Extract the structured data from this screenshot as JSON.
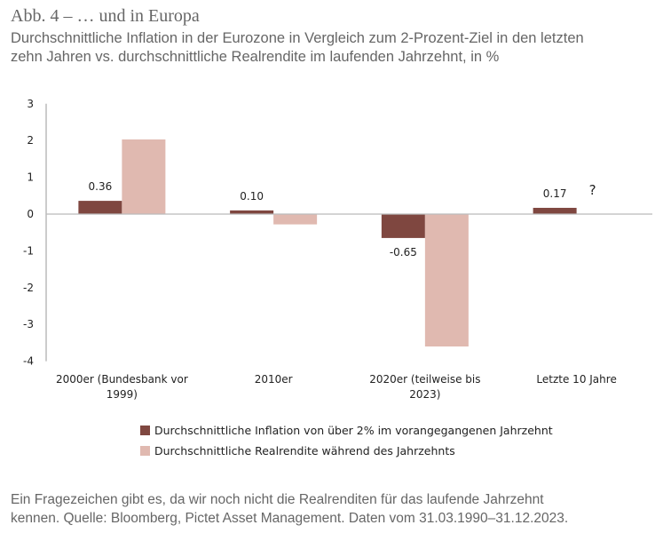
{
  "title": "Abb. 4 – … und in Europa",
  "subtitle_line1": "Durchschnittliche Inflation in der Eurozone in Vergleich zum 2-Prozent-Ziel in den letzten",
  "subtitle_line2": "zehn Jahren vs. durchschnittliche Realrendite im laufenden Jahrzehnt, in %",
  "footnote_line1": "Ein Fragezeichen gibt es, da wir noch nicht die Realrenditen für das laufende Jahrzehnt",
  "footnote_line2": "kennen. Quelle: Bloomberg, Pictet Asset Management. Daten vom 31.03.1990–31.12.2023.",
  "chart_data": {
    "type": "bar",
    "categories": [
      [
        "2000er (Bundesbank vor",
        "1999)"
      ],
      [
        "2010er"
      ],
      [
        "2020er (teilweise bis",
        "2023)"
      ],
      [
        "Letzte 10 Jahre"
      ]
    ],
    "series": [
      {
        "name": "Durchschnittliche Inflation von über 2% im vorangegangenen Jahrzehnt",
        "color": "#7f4740",
        "values": [
          0.36,
          0.1,
          -0.65,
          0.17
        ],
        "labels": [
          "0.36",
          "0.10",
          "-0.65",
          "0.17"
        ]
      },
      {
        "name": "Durchschnittliche Realrendite während des Jahrzehnts",
        "color": "#e0b9b0",
        "values": [
          2.03,
          -0.28,
          -3.6,
          null
        ]
      }
    ],
    "annotation": "?",
    "ylim": [
      -4,
      3
    ],
    "yticks": [
      "3",
      "2",
      "1",
      "0",
      "-1",
      "-2",
      "-3",
      "-4"
    ],
    "legend_position": "bottom"
  }
}
